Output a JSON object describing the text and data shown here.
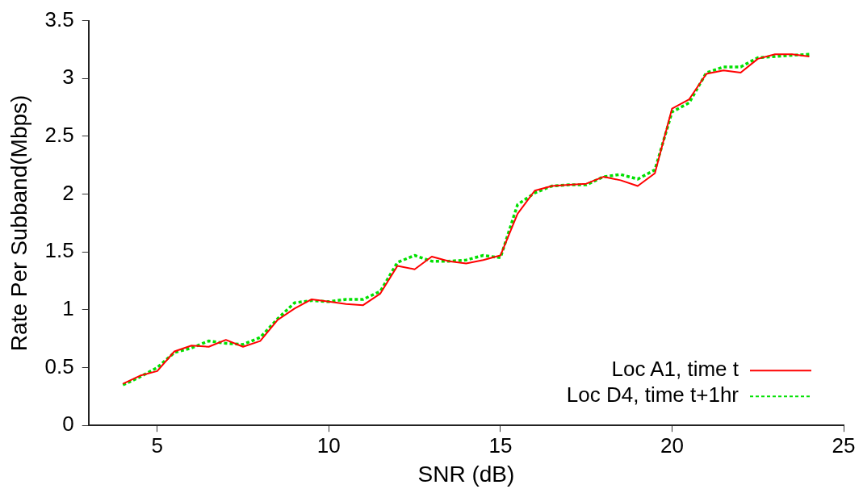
{
  "chart_data": {
    "type": "line",
    "xlabel": "SNR (dB)",
    "ylabel": "Rate Per Subband(Mbps)",
    "x": [
      4,
      4.5,
      5,
      5.5,
      6,
      6.5,
      7,
      7.5,
      8,
      8.5,
      9,
      9.5,
      10,
      10.5,
      11,
      11.5,
      12,
      12.5,
      13,
      13.5,
      14,
      14.5,
      15,
      15.5,
      16,
      16.5,
      17,
      17.5,
      18,
      18.5,
      19,
      19.5,
      20,
      20.5,
      21,
      21.5,
      22,
      22.5,
      23,
      23.5,
      24
    ],
    "series": [
      {
        "name": "Loc A1, time t",
        "color": "#ff0000",
        "line_style": "solid",
        "values": [
          0.36,
          0.43,
          0.47,
          0.64,
          0.69,
          0.68,
          0.74,
          0.68,
          0.73,
          0.91,
          1.01,
          1.09,
          1.07,
          1.05,
          1.04,
          1.14,
          1.38,
          1.35,
          1.46,
          1.42,
          1.4,
          1.43,
          1.47,
          1.83,
          2.03,
          2.07,
          2.08,
          2.09,
          2.15,
          2.12,
          2.07,
          2.18,
          2.74,
          2.82,
          3.04,
          3.07,
          3.05,
          3.17,
          3.21,
          3.21,
          3.19
        ]
      },
      {
        "name": "Loc D4, time t+1hr",
        "color": "#00e000",
        "line_style": "dashed",
        "values": [
          0.35,
          0.42,
          0.5,
          0.63,
          0.67,
          0.73,
          0.71,
          0.7,
          0.76,
          0.92,
          1.06,
          1.08,
          1.07,
          1.09,
          1.09,
          1.16,
          1.41,
          1.47,
          1.42,
          1.42,
          1.43,
          1.47,
          1.45,
          1.91,
          2.01,
          2.07,
          2.08,
          2.08,
          2.15,
          2.17,
          2.13,
          2.21,
          2.71,
          2.79,
          3.05,
          3.1,
          3.1,
          3.18,
          3.19,
          3.2,
          3.21
        ]
      }
    ],
    "xlim": [
      3,
      25
    ],
    "xticks": [
      5,
      10,
      15,
      20,
      25
    ],
    "ylim": [
      0,
      3.5
    ],
    "yticks": [
      0,
      0.5,
      1,
      1.5,
      2,
      2.5,
      3,
      3.5
    ],
    "grid": false,
    "legend": "bottom right",
    "marker": "none"
  }
}
